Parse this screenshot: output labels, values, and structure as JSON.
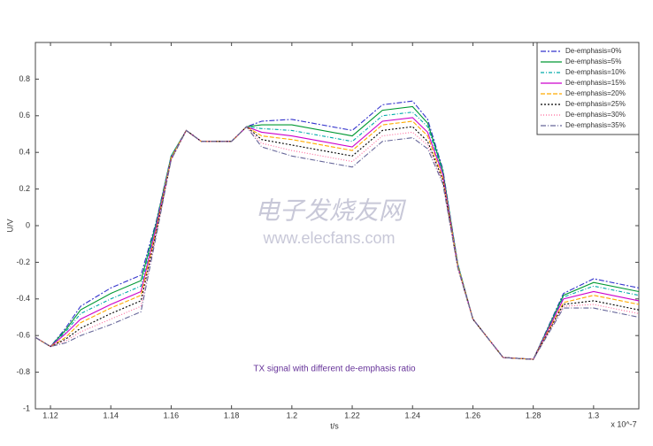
{
  "chart_data": {
    "type": "line",
    "title": "TX signal with different de-emphasis ratio",
    "x_label": "t/s",
    "y_label": "U/V",
    "x_multiplier": "x 10^-7",
    "watermark": [
      "电子发烧友网",
      "www.elecfans.com"
    ],
    "x": [
      1.115,
      1.12,
      1.125,
      1.13,
      1.14,
      1.15,
      1.155,
      1.16,
      1.165,
      1.17,
      1.18,
      1.185,
      1.19,
      1.2,
      1.22,
      1.23,
      1.24,
      1.245,
      1.25,
      1.255,
      1.26,
      1.27,
      1.28,
      1.29,
      1.3,
      1.315
    ],
    "series": [
      {
        "name": "De-emphasis=0%",
        "color": "#3333cc",
        "values": [
          -0.61,
          -0.66,
          -0.56,
          -0.44,
          -0.34,
          -0.27,
          0.02,
          0.38,
          0.52,
          0.46,
          0.46,
          0.54,
          0.57,
          0.58,
          0.52,
          0.66,
          0.68,
          0.58,
          0.31,
          -0.21,
          -0.51,
          -0.72,
          -0.73,
          -0.37,
          -0.29,
          -0.34
        ]
      },
      {
        "name": "De-emphasis=5%",
        "color": "#009933",
        "values": [
          -0.61,
          -0.66,
          -0.57,
          -0.46,
          -0.37,
          -0.3,
          0.01,
          0.38,
          0.52,
          0.46,
          0.46,
          0.54,
          0.55,
          0.55,
          0.49,
          0.63,
          0.65,
          0.56,
          0.3,
          -0.21,
          -0.51,
          -0.72,
          -0.73,
          -0.38,
          -0.31,
          -0.36
        ]
      },
      {
        "name": "De-emphasis=10%",
        "color": "#00aaaa",
        "values": [
          -0.61,
          -0.66,
          -0.58,
          -0.48,
          -0.4,
          -0.33,
          0,
          0.38,
          0.52,
          0.46,
          0.46,
          0.54,
          0.53,
          0.52,
          0.46,
          0.6,
          0.62,
          0.54,
          0.29,
          -0.21,
          -0.51,
          -0.72,
          -0.73,
          -0.39,
          -0.33,
          -0.38
        ]
      },
      {
        "name": "De-emphasis=15%",
        "color": "#cc00cc",
        "values": [
          -0.61,
          -0.66,
          -0.59,
          -0.51,
          -0.43,
          -0.36,
          -0.01,
          0.37,
          0.52,
          0.46,
          0.46,
          0.54,
          0.51,
          0.49,
          0.43,
          0.57,
          0.59,
          0.51,
          0.28,
          -0.22,
          -0.51,
          -0.72,
          -0.73,
          -0.4,
          -0.36,
          -0.41
        ]
      },
      {
        "name": "De-emphasis=20%",
        "color": "#ffaa00",
        "values": [
          -0.61,
          -0.66,
          -0.61,
          -0.53,
          -0.45,
          -0.38,
          -0.03,
          0.37,
          0.52,
          0.46,
          0.46,
          0.54,
          0.49,
          0.47,
          0.41,
          0.55,
          0.57,
          0.49,
          0.26,
          -0.22,
          -0.51,
          -0.72,
          -0.73,
          -0.42,
          -0.38,
          -0.43
        ]
      },
      {
        "name": "De-emphasis=25%",
        "color": "#000000",
        "values": [
          -0.61,
          -0.66,
          -0.62,
          -0.56,
          -0.48,
          -0.41,
          -0.04,
          0.36,
          0.52,
          0.46,
          0.46,
          0.54,
          0.47,
          0.44,
          0.38,
          0.52,
          0.54,
          0.46,
          0.25,
          -0.23,
          -0.51,
          -0.72,
          -0.73,
          -0.43,
          -0.41,
          -0.46
        ]
      },
      {
        "name": "De-emphasis=30%",
        "color": "#ff6699",
        "values": [
          -0.61,
          -0.66,
          -0.63,
          -0.58,
          -0.51,
          -0.44,
          -0.05,
          0.36,
          0.52,
          0.46,
          0.46,
          0.54,
          0.45,
          0.41,
          0.35,
          0.49,
          0.51,
          0.44,
          0.24,
          -0.23,
          -0.51,
          -0.72,
          -0.73,
          -0.44,
          -0.43,
          -0.48
        ]
      },
      {
        "name": "De-emphasis=35%",
        "color": "#666699",
        "values": [
          -0.61,
          -0.66,
          -0.64,
          -0.6,
          -0.54,
          -0.47,
          -0.06,
          0.36,
          0.52,
          0.46,
          0.46,
          0.54,
          0.43,
          0.38,
          0.32,
          0.46,
          0.48,
          0.42,
          0.23,
          -0.23,
          -0.51,
          -0.72,
          -0.73,
          -0.45,
          -0.45,
          -0.5
        ]
      }
    ],
    "xlim": [
      1.115,
      1.315
    ],
    "xticks": [
      1.12,
      1.14,
      1.16,
      1.18,
      1.2,
      1.22,
      1.24,
      1.26,
      1.28,
      1.3
    ],
    "ylim": [
      -1,
      1
    ],
    "yticks": [
      -1,
      -0.8,
      -0.6,
      -0.4,
      -0.2,
      0,
      0.2,
      0.4,
      0.6,
      0.8
    ],
    "legend": "top-right",
    "grid": false
  }
}
